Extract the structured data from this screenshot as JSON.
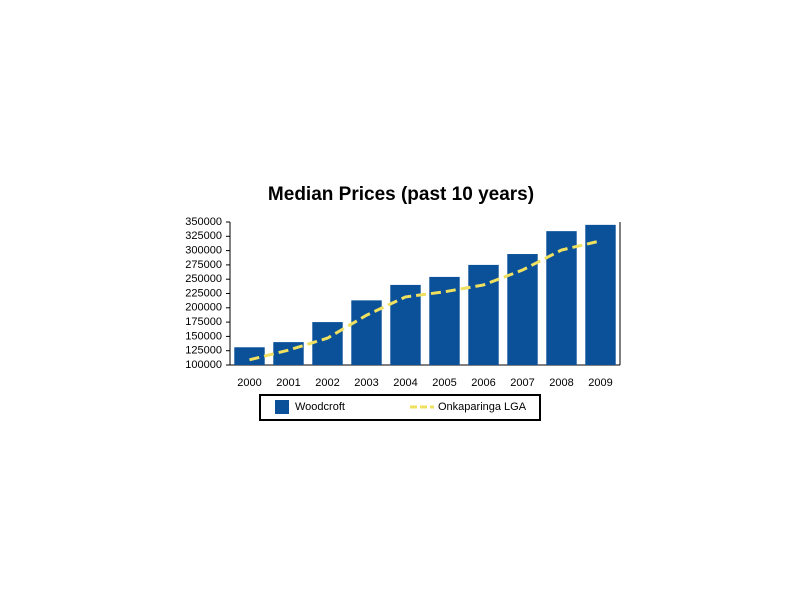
{
  "chart_data": {
    "type": "bar",
    "title": "Median Prices (past 10 years)",
    "categories": [
      "2000",
      "2001",
      "2002",
      "2003",
      "2004",
      "2005",
      "2006",
      "2007",
      "2008",
      "2009"
    ],
    "series": [
      {
        "name": "Woodcroft",
        "type": "bar",
        "color": "#0b5199",
        "values": [
          131000,
          140000,
          175000,
          213000,
          240000,
          254000,
          275000,
          294000,
          334000,
          345000
        ]
      },
      {
        "name": "Onkaparinga LGA",
        "type": "line",
        "color": "#f0e060",
        "values": [
          109000,
          126000,
          147000,
          187000,
          219000,
          228000,
          240000,
          266000,
          301000,
          317000
        ]
      }
    ],
    "ylim": [
      100000,
      350000
    ],
    "yticks": [
      100000,
      125000,
      150000,
      175000,
      200000,
      225000,
      250000,
      275000,
      300000,
      325000,
      350000
    ],
    "grid": false,
    "legend": "bottom"
  }
}
